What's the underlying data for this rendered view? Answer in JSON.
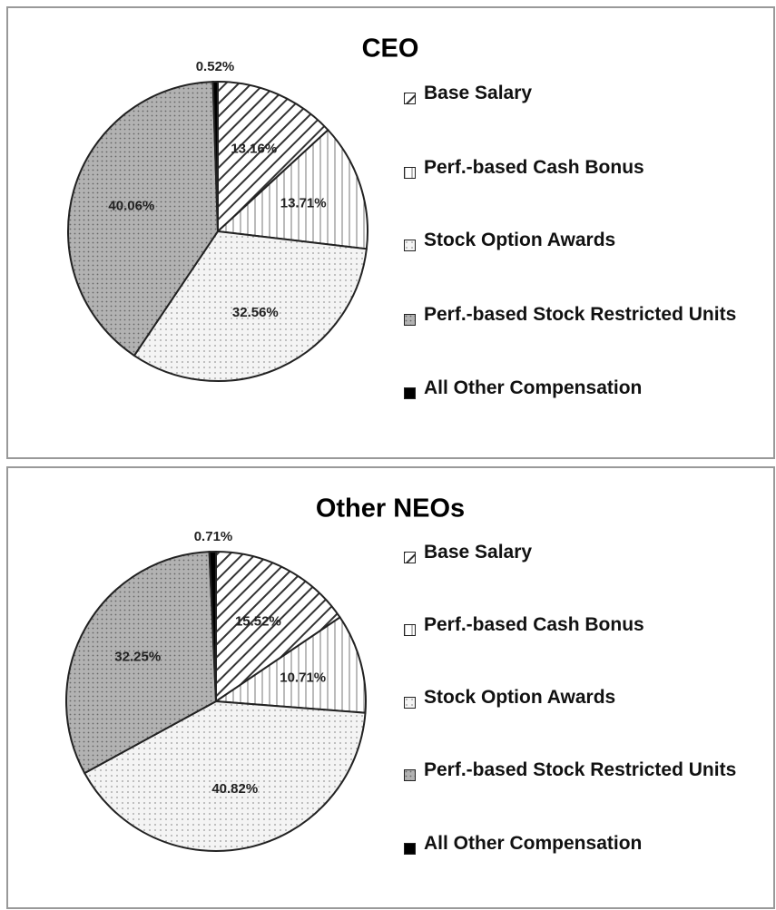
{
  "chart_data": [
    {
      "type": "pie",
      "title": "CEO",
      "categories": [
        "Base Salary",
        "Perf.-based Cash Bonus",
        "Stock Option Awards",
        "Perf.-based Stock Restricted Units",
        "All Other Compensation"
      ],
      "values": [
        13.16,
        13.71,
        32.56,
        40.06,
        0.52
      ],
      "value_labels": [
        "13.16%",
        "13.71%",
        "32.56%",
        "40.06%",
        "0.52%"
      ],
      "patterns": [
        "diagonal",
        "vertical",
        "dots",
        "gray",
        "solid"
      ],
      "legend": "right"
    },
    {
      "type": "pie",
      "title": "Other NEOs",
      "categories": [
        "Base Salary",
        "Perf.-based Cash Bonus",
        "Stock Option Awards",
        "Perf.-based Stock Restricted Units",
        "All Other Compensation"
      ],
      "values": [
        15.52,
        10.71,
        40.82,
        32.25,
        0.71
      ],
      "value_labels": [
        "15.52%",
        "10.71%",
        "40.82%",
        "32.25%",
        "0.71%"
      ],
      "patterns": [
        "diagonal",
        "vertical",
        "dots",
        "gray",
        "solid"
      ],
      "legend": "right"
    }
  ]
}
